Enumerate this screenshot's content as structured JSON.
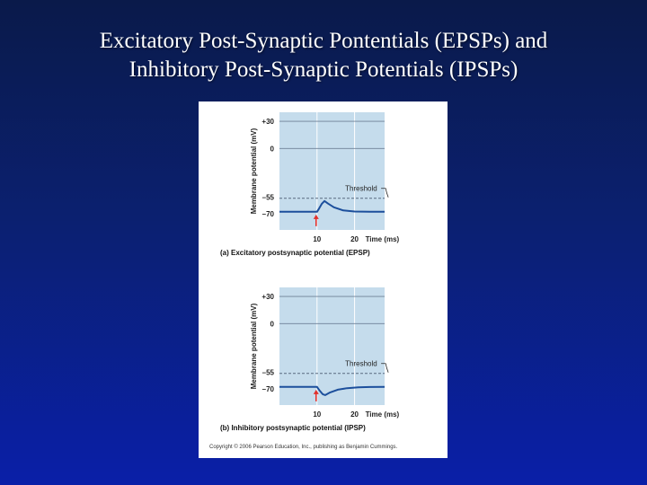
{
  "slide": {
    "title_line1": "Excitatory Post-Synaptic Pontentials (EPSPs) and",
    "title_line2": "Inhibitory Post-Synaptic Potentials (IPSPs)"
  },
  "colors": {
    "panel_bg": "#c5dcec",
    "trace": "#1c4f9c",
    "stimulus_arrow": "#e0302c",
    "threshold_line": "#5a6a80"
  },
  "copyright": "Copyright © 2006 Pearson Education, Inc., publishing as Benjamin Cummings.",
  "chart_data": [
    {
      "type": "line",
      "title": "(a) Excitatory postsynaptic potential (EPSP)",
      "xlabel": "Time (ms)",
      "ylabel": "Membrane potential (mV)",
      "xlim": [
        0,
        28
      ],
      "ylim": [
        -90,
        40
      ],
      "x_ticks": [
        10,
        20
      ],
      "y_ticks": [
        {
          "value": 30,
          "label": "+30"
        },
        {
          "value": 0,
          "label": "0"
        },
        {
          "value": -55,
          "label": "–55"
        },
        {
          "value": -70,
          "label": "–70"
        }
      ],
      "threshold": {
        "value": -55,
        "label": "Threshold"
      },
      "stimulus_time": 10,
      "series": [
        {
          "x": [
            0,
            10,
            10.6,
            11.3,
            12,
            13,
            14.5,
            17,
            20,
            24,
            28
          ],
          "values": [
            -70,
            -70,
            -66,
            -61,
            -58,
            -61,
            -65,
            -68.5,
            -69.7,
            -70,
            -70
          ]
        }
      ]
    },
    {
      "type": "line",
      "title": "(b) Inhibitory postsynaptic potential (IPSP)",
      "xlabel": "Time (ms)",
      "ylabel": "Membrane potential (mV)",
      "xlim": [
        0,
        28
      ],
      "ylim": [
        -90,
        40
      ],
      "x_ticks": [
        10,
        20
      ],
      "y_ticks": [
        {
          "value": 30,
          "label": "+30"
        },
        {
          "value": 0,
          "label": "0"
        },
        {
          "value": -55,
          "label": "–55"
        },
        {
          "value": -70,
          "label": "–70"
        }
      ],
      "threshold": {
        "value": -55,
        "label": "Threshold"
      },
      "stimulus_time": 10,
      "series": [
        {
          "x": [
            0,
            10,
            10.7,
            11.5,
            12.2,
            13.5,
            15.5,
            18,
            21,
            24,
            28
          ],
          "values": [
            -70,
            -70,
            -74,
            -78,
            -79,
            -76,
            -73,
            -71.3,
            -70.4,
            -70.1,
            -70
          ]
        }
      ]
    }
  ]
}
